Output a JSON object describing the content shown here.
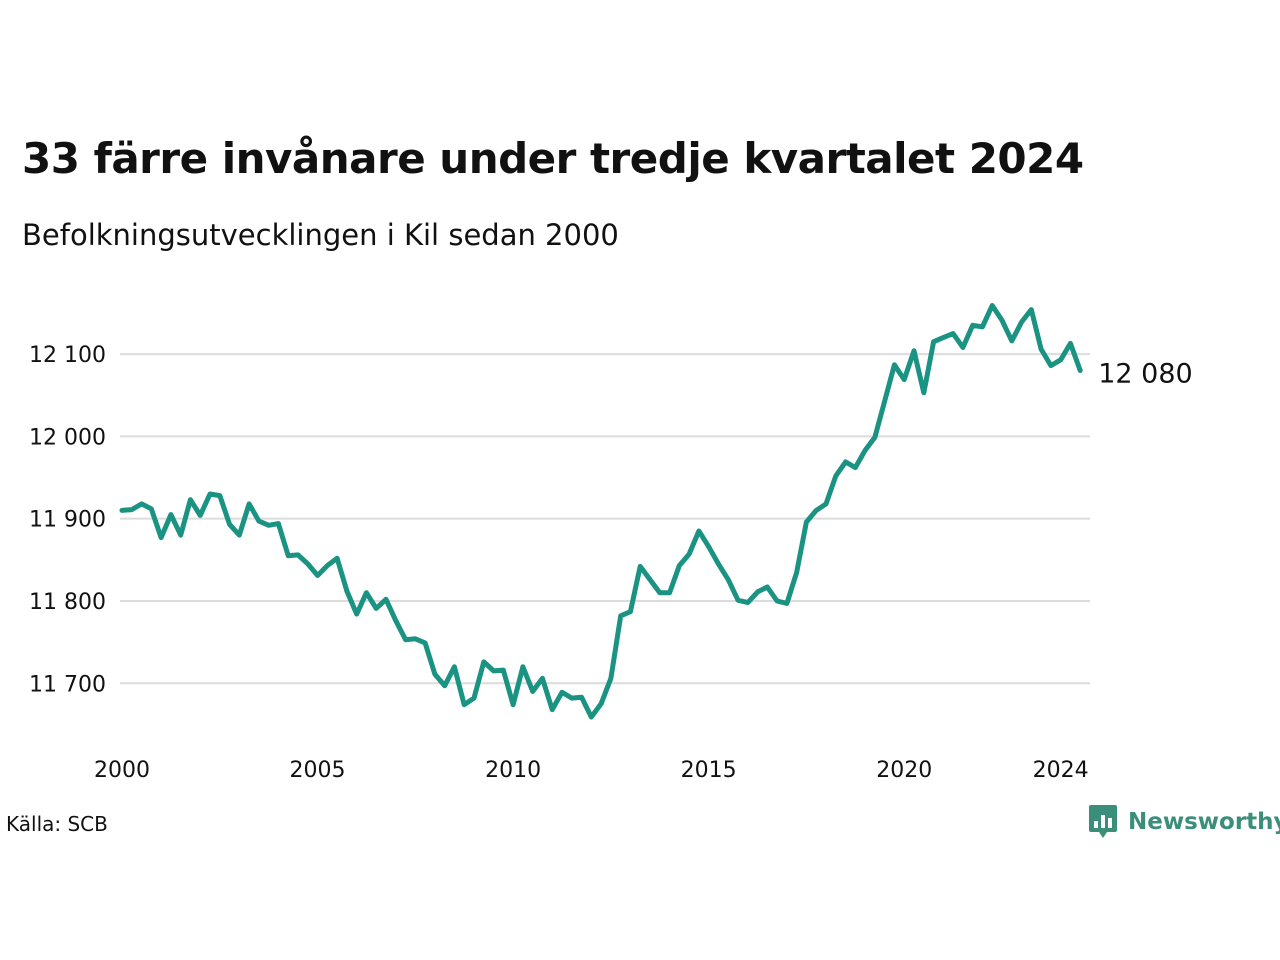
{
  "title": "33 färre invånare under tredje kvartalet 2024",
  "subtitle": "Befolkningsutvecklingen i Kil sedan 2000",
  "source": "Källa: SCB",
  "brand": {
    "name": "Newsworthy",
    "color": "#3b8f7a",
    "icon": "chart-speech-bubble-icon"
  },
  "colors": {
    "line": "#1b9382",
    "grid": "#dcdcdc",
    "text": "#111111"
  },
  "chart_data": {
    "type": "line",
    "title": "33 färre invånare under tredje kvartalet 2024",
    "subtitle": "Befolkningsutvecklingen i Kil sedan 2000",
    "xlabel": "",
    "ylabel": "",
    "x_ticks": [
      2000,
      2005,
      2010,
      2015,
      2020,
      2024
    ],
    "y_ticks": [
      11700,
      11800,
      11900,
      12000,
      12100
    ],
    "y_tick_labels": [
      "11 700",
      "11 800",
      "11 900",
      "12 000",
      "12 100"
    ],
    "xlim": [
      2000,
      2024.75
    ],
    "ylim": [
      11625,
      12190
    ],
    "grid": "horizontal",
    "legend": "none",
    "end_label": "12 080",
    "frequency": "quarterly",
    "x_start": "2000 Q1",
    "series": [
      {
        "values": [
          11910,
          11911,
          11918,
          11912,
          11877,
          11905,
          11880,
          11923,
          11904,
          11930,
          11928,
          11893,
          11880,
          11918,
          11897,
          11892,
          11894,
          11855,
          11856,
          11845,
          11831,
          11843,
          11852,
          11812,
          11784,
          11810,
          11791,
          11802,
          11776,
          11753,
          11754,
          11749,
          11711,
          11697,
          11720,
          11674,
          11682,
          11726,
          11715,
          11716,
          11674,
          11720,
          11690,
          11706,
          11668,
          11689,
          11682,
          11683,
          11659,
          11675,
          11706,
          11782,
          11787,
          11842,
          11826,
          11810,
          11810,
          11843,
          11857,
          11885,
          11866,
          11845,
          11826,
          11801,
          11798,
          11811,
          11817,
          11800,
          11797,
          11835,
          11896,
          11910,
          11918,
          11952,
          11969,
          11962,
          11983,
          11999,
          12043,
          12087,
          12069,
          12104,
          12053,
          12115,
          12120,
          12125,
          12108,
          12135,
          12133,
          12159,
          12141,
          12116,
          12139,
          12154,
          12106,
          12086,
          12093,
          12113,
          12080
        ]
      }
    ]
  }
}
